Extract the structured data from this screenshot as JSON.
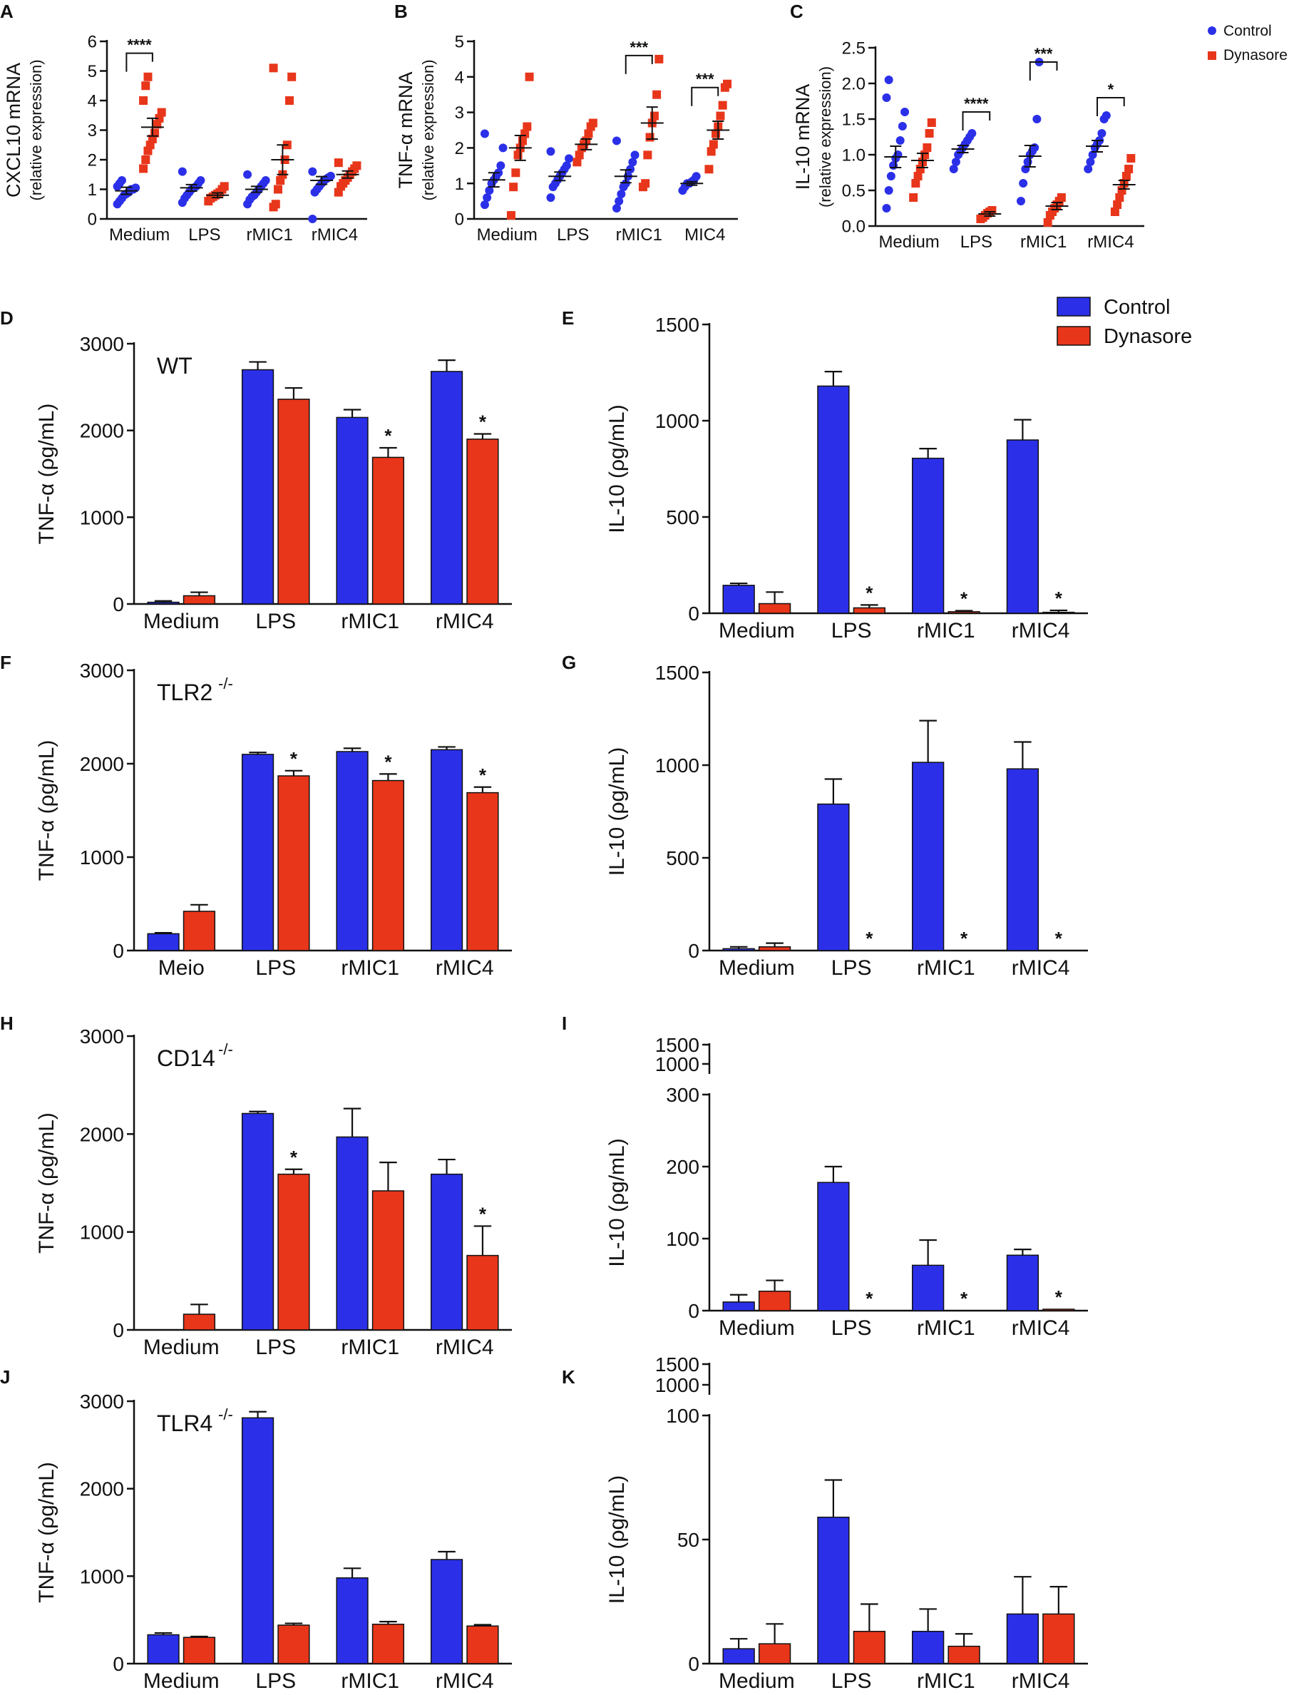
{
  "figure": {
    "title": ""
  },
  "legend_scatter": {
    "control": "Control",
    "dynasore": "Dynasore"
  },
  "legend_bars": {
    "control": "Control",
    "dynasore": "Dynasore"
  },
  "colors": {
    "control": "#2b30e8",
    "dynasore": "#e8361b",
    "axis": "#111111"
  },
  "chart_data": [
    {
      "id": "A",
      "panel_label": "A",
      "type": "scatter",
      "ylabel": "CXCL10 mRNA",
      "ylabel2": "(relative expression)",
      "ylim": [
        0,
        6
      ],
      "yticks": [
        0,
        1,
        2,
        3,
        4,
        5,
        6
      ],
      "categories": [
        "Medium",
        "LPS",
        "rMIC1",
        "rMIC4"
      ],
      "series": [
        {
          "name": "Control",
          "points": [
            [
              0.5,
              0.6,
              0.7,
              0.8,
              0.85,
              0.9,
              1.0,
              1.0,
              1.05,
              1.1,
              1.2,
              1.3
            ],
            [
              0.55,
              0.7,
              0.8,
              0.9,
              1.0,
              1.05,
              1.1,
              1.2,
              1.3,
              1.6
            ],
            [
              0.5,
              0.65,
              0.75,
              0.8,
              0.9,
              1.0,
              1.1,
              1.2,
              1.3,
              1.5
            ],
            [
              0.0,
              0.9,
              1.0,
              1.1,
              1.2,
              1.3,
              1.35,
              1.4,
              1.45,
              1.6
            ]
          ],
          "mean": [
            0.95,
            1.05,
            1.0,
            1.3
          ],
          "sem": [
            0.12,
            0.11,
            0.1,
            0.13
          ]
        },
        {
          "name": "Dynasore",
          "points": [
            [
              1.7,
              2.0,
              2.3,
              2.5,
              2.7,
              2.9,
              3.2,
              3.4,
              3.6,
              4.0,
              4.5,
              4.8
            ],
            [
              0.6,
              0.7,
              0.75,
              0.8,
              0.85,
              0.9,
              1.0,
              1.1
            ],
            [
              0.4,
              0.5,
              1.0,
              1.3,
              1.5,
              2.0,
              2.5,
              4.0,
              4.8,
              5.1
            ],
            [
              0.9,
              1.1,
              1.2,
              1.3,
              1.4,
              1.5,
              1.6,
              1.7,
              1.8,
              1.9
            ]
          ],
          "mean": [
            3.1,
            0.8,
            2.0,
            1.5
          ],
          "sem": [
            0.3,
            0.08,
            0.5,
            0.12
          ]
        }
      ],
      "significance": [
        {
          "category": "Medium",
          "text": "****",
          "y": 5.6
        }
      ]
    },
    {
      "id": "B",
      "panel_label": "B",
      "type": "scatter",
      "ylabel": "TNF-α mRNA",
      "ylabel2": "(relative expression)",
      "ylim": [
        0,
        5
      ],
      "yticks": [
        0,
        1,
        2,
        3,
        4,
        5
      ],
      "categories": [
        "Medium",
        "LPS",
        "rMIC1",
        "MIC4"
      ],
      "series": [
        {
          "name": "Control",
          "points": [
            [
              0.4,
              0.6,
              0.8,
              1.0,
              1.1,
              1.2,
              1.3,
              1.5,
              2.0,
              2.4
            ],
            [
              0.6,
              0.9,
              1.0,
              1.1,
              1.2,
              1.3,
              1.4,
              1.5,
              1.7,
              1.9
            ],
            [
              0.3,
              0.5,
              0.7,
              0.9,
              1.0,
              1.2,
              1.4,
              1.6,
              1.8,
              2.2
            ],
            [
              0.8,
              0.9,
              1.0,
              1.0,
              1.05,
              1.1,
              1.2
            ]
          ],
          "mean": [
            1.1,
            1.2,
            1.2,
            1.0
          ],
          "sem": [
            0.2,
            0.12,
            0.18,
            0.05
          ]
        },
        {
          "name": "Dynasore",
          "points": [
            [
              0.1,
              0.9,
              1.3,
              1.8,
              2.0,
              2.2,
              2.4,
              2.6,
              4.0
            ],
            [
              1.6,
              1.8,
              2.0,
              2.1,
              2.2,
              2.4,
              2.6,
              2.7
            ],
            [
              0.9,
              1.0,
              1.8,
              2.3,
              2.7,
              2.9,
              3.5,
              4.5
            ],
            [
              1.4,
              1.9,
              2.1,
              2.4,
              2.6,
              2.9,
              3.2,
              3.7,
              3.8
            ]
          ],
          "mean": [
            2.0,
            2.1,
            2.7,
            2.5
          ],
          "sem": [
            0.35,
            0.15,
            0.45,
            0.25
          ]
        }
      ],
      "significance": [
        {
          "category": "rMIC1",
          "text": "***",
          "y": 4.6
        },
        {
          "category": "MIC4",
          "text": "***",
          "y": 3.7
        }
      ]
    },
    {
      "id": "C",
      "panel_label": "C",
      "type": "scatter",
      "ylabel": "IL-10 mRNA",
      "ylabel2": "(relative expression)",
      "ylim": [
        0,
        2.5
      ],
      "yticks": [
        0.0,
        0.5,
        1.0,
        1.5,
        2.0,
        2.5
      ],
      "categories": [
        "Medium",
        "LPS",
        "rMIC1",
        "rMIC4"
      ],
      "series": [
        {
          "name": "Control",
          "points": [
            [
              0.25,
              0.5,
              0.7,
              0.85,
              0.95,
              1.0,
              1.2,
              1.4,
              1.6,
              1.8,
              2.05
            ],
            [
              0.8,
              0.9,
              1.0,
              1.05,
              1.1,
              1.15,
              1.2,
              1.25,
              1.3
            ],
            [
              0.35,
              0.6,
              0.8,
              0.9,
              1.0,
              1.05,
              1.1,
              1.5,
              2.3
            ],
            [
              0.8,
              0.9,
              1.0,
              1.1,
              1.15,
              1.2,
              1.3,
              1.5,
              1.55
            ]
          ],
          "mean": [
            0.97,
            1.08,
            0.98,
            1.12
          ],
          "sem": [
            0.15,
            0.05,
            0.15,
            0.08
          ]
        },
        {
          "name": "Dynasore",
          "points": [
            [
              0.4,
              0.6,
              0.7,
              0.8,
              0.9,
              1.0,
              1.1,
              1.3,
              1.45
            ],
            [
              0.1,
              0.12,
              0.15,
              0.18,
              0.2,
              0.22
            ],
            [
              0.05,
              0.15,
              0.2,
              0.25,
              0.3,
              0.35,
              0.4
            ],
            [
              0.2,
              0.3,
              0.4,
              0.5,
              0.6,
              0.7,
              0.8,
              0.95
            ]
          ],
          "mean": [
            0.92,
            0.17,
            0.28,
            0.58
          ],
          "sem": [
            0.1,
            0.03,
            0.05,
            0.06
          ]
        }
      ],
      "significance": [
        {
          "category": "LPS",
          "text": "****",
          "y": 1.6
        },
        {
          "category": "rMIC1",
          "text": "***",
          "y": 2.3
        },
        {
          "category": "rMIC4",
          "text": "*",
          "y": 1.8
        }
      ]
    },
    {
      "id": "D",
      "panel_label": "D",
      "type": "bar",
      "inset_label": "WT",
      "inset_sup": "",
      "ylabel": "TNF-α (ρg/mL)",
      "ylim": [
        0,
        3000
      ],
      "yticks": [
        0,
        1000,
        2000,
        3000
      ],
      "categories": [
        "Medium",
        "LPS",
        "rMIC1",
        "rMIC4"
      ],
      "series": [
        {
          "name": "Control",
          "values": [
            20,
            2700,
            2150,
            2680
          ],
          "errors": [
            15,
            90,
            90,
            130
          ]
        },
        {
          "name": "Dynasore",
          "values": [
            95,
            2360,
            1690,
            1900
          ],
          "errors": [
            40,
            130,
            110,
            60
          ]
        }
      ],
      "stars": [
        false,
        false,
        true,
        true
      ]
    },
    {
      "id": "E",
      "panel_label": "E",
      "type": "bar",
      "inset_label": "",
      "inset_sup": "",
      "ylabel": "IL-10 (ρg/mL)",
      "ylim": [
        0,
        1500
      ],
      "yticks": [
        0,
        500,
        1000,
        1500
      ],
      "categories": [
        "Medium",
        "LPS",
        "rMIC1",
        "rMIC4"
      ],
      "series": [
        {
          "name": "Control",
          "values": [
            145,
            1180,
            805,
            900
          ],
          "errors": [
            10,
            75,
            50,
            105
          ]
        },
        {
          "name": "Dynasore",
          "values": [
            50,
            28,
            8,
            5
          ],
          "errors": [
            60,
            15,
            5,
            10
          ]
        }
      ],
      "stars": [
        false,
        true,
        true,
        true
      ]
    },
    {
      "id": "F",
      "panel_label": "F",
      "type": "bar",
      "inset_label": "TLR2",
      "inset_sup": "-/-",
      "ylabel": "TNF-α (ρg/mL)",
      "ylim": [
        0,
        3000
      ],
      "yticks": [
        0,
        1000,
        2000,
        3000
      ],
      "categories": [
        "Meio",
        "LPS",
        "rMIC1",
        "rMIC4"
      ],
      "series": [
        {
          "name": "Control",
          "values": [
            180,
            2100,
            2130,
            2150
          ],
          "errors": [
            10,
            20,
            35,
            30
          ]
        },
        {
          "name": "Dynasore",
          "values": [
            420,
            1870,
            1820,
            1690
          ],
          "errors": [
            70,
            55,
            70,
            60
          ]
        }
      ],
      "stars": [
        false,
        true,
        true,
        true
      ]
    },
    {
      "id": "G",
      "panel_label": "G",
      "type": "bar",
      "inset_label": "",
      "inset_sup": "",
      "ylabel": "IL-10 (ρg/mL)",
      "ylim": [
        0,
        1500
      ],
      "yticks": [
        0,
        500,
        1000,
        1500
      ],
      "categories": [
        "Medium",
        "LPS",
        "rMIC1",
        "rMIC4"
      ],
      "series": [
        {
          "name": "Control",
          "values": [
            10,
            790,
            1015,
            980
          ],
          "errors": [
            10,
            135,
            225,
            145
          ]
        },
        {
          "name": "Dynasore",
          "values": [
            20,
            0,
            0,
            0
          ],
          "errors": [
            20,
            0,
            0,
            0
          ]
        }
      ],
      "stars": [
        false,
        true,
        true,
        true
      ]
    },
    {
      "id": "H",
      "panel_label": "H",
      "type": "bar",
      "inset_label": "CD14",
      "inset_sup": "-/-",
      "ylabel": "TNF-α (ρg/mL)",
      "ylim": [
        0,
        3000
      ],
      "yticks": [
        0,
        1000,
        2000,
        3000
      ],
      "categories": [
        "Medium",
        "LPS",
        "rMIC1",
        "rMIC4"
      ],
      "series": [
        {
          "name": "Control",
          "values": [
            0,
            2210,
            1970,
            1590
          ],
          "errors": [
            0,
            20,
            290,
            150
          ]
        },
        {
          "name": "Dynasore",
          "values": [
            160,
            1590,
            1420,
            760
          ],
          "errors": [
            100,
            50,
            290,
            300
          ]
        }
      ],
      "stars": [
        false,
        true,
        false,
        true
      ]
    },
    {
      "id": "I",
      "panel_label": "I",
      "type": "bar",
      "inset_label": "",
      "inset_sup": "",
      "ylabel": "IL-10 (ρg/mL)",
      "ylim": [
        0,
        300
      ],
      "yticks": [
        0,
        100,
        200,
        300
      ],
      "broken_axis_ticks": [
        1000,
        1500
      ],
      "categories": [
        "Medium",
        "LPS",
        "rMIC1",
        "rMIC4"
      ],
      "series": [
        {
          "name": "Control",
          "values": [
            12,
            178,
            63,
            77
          ],
          "errors": [
            10,
            22,
            35,
            8
          ]
        },
        {
          "name": "Dynasore",
          "values": [
            27,
            0,
            0,
            2
          ],
          "errors": [
            15,
            0,
            0,
            0
          ]
        }
      ],
      "stars": [
        false,
        true,
        true,
        true
      ]
    },
    {
      "id": "J",
      "panel_label": "J",
      "type": "bar",
      "inset_label": "TLR4",
      "inset_sup": "-/-",
      "ylabel": "TNF-α (ρg/mL)",
      "ylim": [
        0,
        3000
      ],
      "yticks": [
        0,
        1000,
        2000,
        3000
      ],
      "categories": [
        "Medium",
        "LPS",
        "rMIC1",
        "rMIC4"
      ],
      "series": [
        {
          "name": "Control",
          "values": [
            330,
            2810,
            980,
            1190
          ],
          "errors": [
            20,
            70,
            110,
            90
          ]
        },
        {
          "name": "Dynasore",
          "values": [
            300,
            440,
            450,
            430
          ],
          "errors": [
            10,
            20,
            30,
            15
          ]
        }
      ],
      "stars": [
        false,
        false,
        false,
        false
      ]
    },
    {
      "id": "K",
      "panel_label": "K",
      "type": "bar",
      "inset_label": "",
      "inset_sup": "",
      "ylabel": "IL-10 (ρg/mL)",
      "ylim": [
        0,
        100
      ],
      "yticks": [
        0,
        50,
        100
      ],
      "broken_axis_ticks": [
        1000,
        1500
      ],
      "categories": [
        "Medium",
        "LPS",
        "rMIC1",
        "rMIC4"
      ],
      "series": [
        {
          "name": "Control",
          "values": [
            6,
            59,
            13,
            20
          ],
          "errors": [
            4,
            15,
            9,
            15
          ]
        },
        {
          "name": "Dynasore",
          "values": [
            8,
            13,
            7,
            20
          ],
          "errors": [
            8,
            11,
            5,
            11
          ]
        }
      ],
      "stars": [
        false,
        false,
        false,
        false
      ]
    }
  ]
}
